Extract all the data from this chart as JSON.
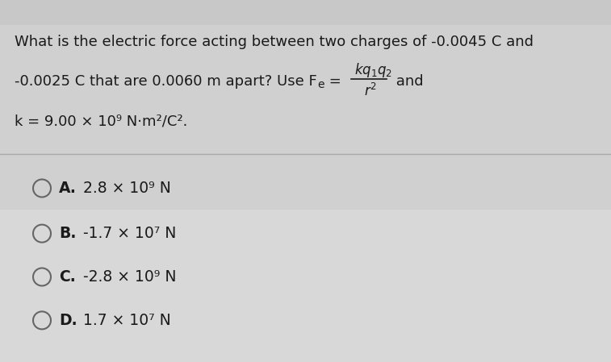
{
  "bg_color": "#d8d8d8",
  "text_color": "#1a1a1a",
  "dark_text": "#2a2a2a",
  "question_line1": "What is the electric force acting between two charges of -0.0045 C and",
  "question_line2_pre": "-0.0025 C that are 0.0060 m apart? Use F",
  "question_line2_sub": "e",
  "question_line2_eq": " =",
  "question_line2_and": " and",
  "formula_num": "kq",
  "formula_num2": "1",
  "formula_num3": "q",
  "formula_num4": "2",
  "formula_den": "r",
  "formula_den2": "2",
  "question_line3": "k = 9.00 × 10⁹ N·m²/C².",
  "options": [
    {
      "label": "A.",
      "text": " 2.8 × 10⁹ N"
    },
    {
      "label": "B.",
      "text": " -1.7 × 10⁷ N"
    },
    {
      "label": "C.",
      "text": " -2.8 × 10⁹ N"
    },
    {
      "label": "D.",
      "text": " 1.7 × 10⁷ N"
    }
  ],
  "q_fontsize": 13.0,
  "opt_fontsize": 13.5,
  "circle_r": 11,
  "fig_width": 7.57,
  "fig_height": 4.49,
  "dpi": 100
}
